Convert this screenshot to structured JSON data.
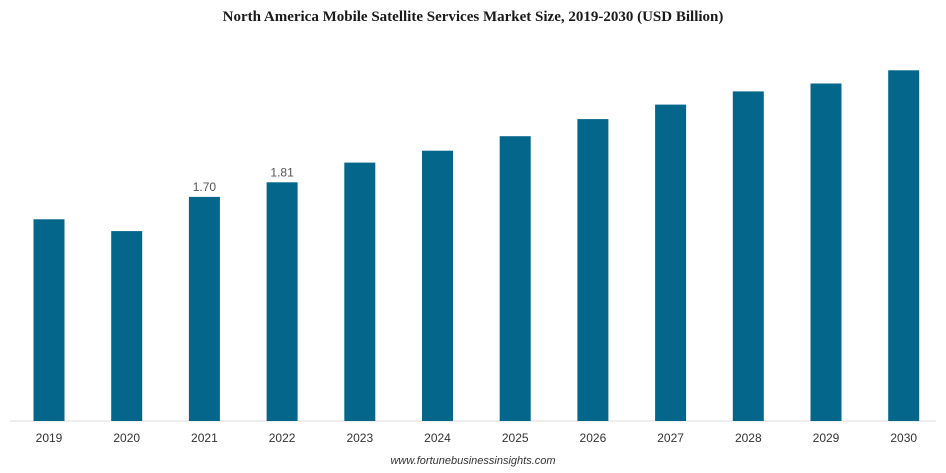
{
  "chart_data": {
    "type": "bar",
    "title": "North America Mobile Satellite Services Market Size, 2019-2030 (USD Billion)",
    "xlabel": "",
    "ylabel": "",
    "categories": [
      "2019",
      "2020",
      "2021",
      "2022",
      "2023",
      "2024",
      "2025",
      "2026",
      "2027",
      "2028",
      "2029",
      "2030"
    ],
    "values": [
      1.53,
      1.44,
      1.7,
      1.81,
      1.96,
      2.05,
      2.16,
      2.29,
      2.4,
      2.5,
      2.56,
      2.66
    ],
    "data_labels": [
      null,
      null,
      "1.70",
      "1.81",
      null,
      null,
      null,
      null,
      null,
      null,
      null,
      null
    ],
    "ylim": [
      0,
      2.7
    ],
    "grid": false,
    "legend": "none",
    "colors": {
      "bar": "#04668a",
      "baseline": "#dddddd"
    }
  },
  "source": "www.fortunebusinessinsights.com"
}
